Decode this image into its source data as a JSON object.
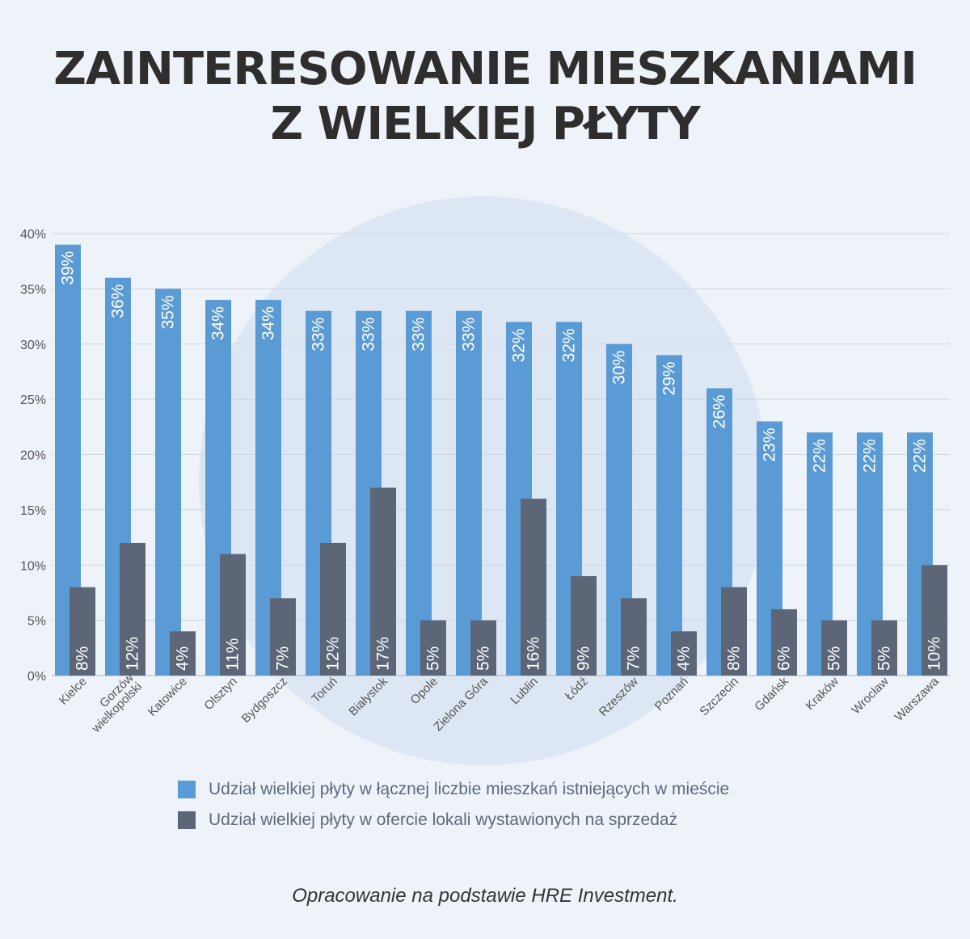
{
  "title": {
    "line1": "ZAINTERESOWANIE MIESZKANIAMI",
    "line2": "Z WIELKIEJ PŁYTY"
  },
  "chart_data": {
    "type": "bar",
    "categories": [
      "Kielce",
      "Gorzów wielkopolski",
      "Katowice",
      "Olsztyn",
      "Bydgoszcz",
      "Toruń",
      "Białystok",
      "Opole",
      "Zielona Góra",
      "Lublin",
      "Łódź",
      "Rzeszów",
      "Poznań",
      "Szczecin",
      "Gdańsk",
      "Kraków",
      "Wrocław",
      "Warszawa"
    ],
    "series": [
      {
        "name": "Udział wielkiej płyty w łącznej liczbie mieszkań istniejących w mieście",
        "color": "#5b9bd5",
        "values": [
          39,
          36,
          35,
          34,
          34,
          33,
          33,
          33,
          33,
          32,
          32,
          30,
          29,
          26,
          23,
          22,
          22,
          22
        ],
        "labels": [
          "39%",
          "36%",
          "35%",
          "34%",
          "34%",
          "33%",
          "33%",
          "33%",
          "33%",
          "32%",
          "32%",
          "30%",
          "29%",
          "26%",
          "23%",
          "22%",
          "22%",
          "22%"
        ]
      },
      {
        "name": "Udział wielkiej płyty w ofercie lokali wystawionych na sprzedaż",
        "color": "#5c6677",
        "values": [
          8,
          12,
          4,
          11,
          7,
          12,
          17,
          5,
          5,
          16,
          9,
          7,
          4,
          8,
          6,
          5,
          5,
          10
        ],
        "labels": [
          "8%",
          "12%",
          "4%",
          "11%",
          "7%",
          "12%",
          "17%",
          "5%",
          "5%",
          "16%",
          "9%",
          "7%",
          "4%",
          "8%",
          "6%",
          "5%",
          "5%",
          "10%"
        ]
      }
    ],
    "ylim": [
      0,
      40
    ],
    "yticks": [
      "0%",
      "5%",
      "10%",
      "15%",
      "20%",
      "25%",
      "30%",
      "35%",
      "40%"
    ],
    "grid": true,
    "legend": "bottom"
  },
  "source": "Opracowanie na podstawie HRE Investment."
}
